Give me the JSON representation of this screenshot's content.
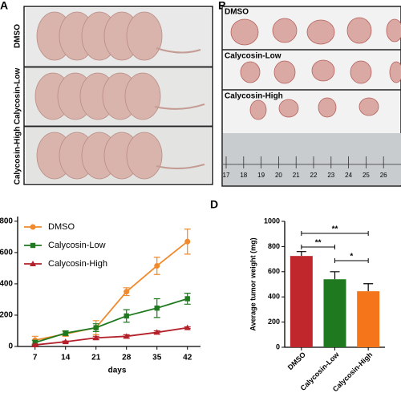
{
  "figure": {
    "panels": [
      {
        "label": "A",
        "row_labels": [
          "DMSO",
          "Calycosin-Low",
          "Calycosin-High"
        ]
      },
      {
        "label": "B",
        "row_labels": [
          "DMSO",
          "Calycosin-Low",
          "Calycosin-High"
        ],
        "ruler_labels": [
          17,
          18,
          19,
          20,
          21,
          22,
          23,
          24,
          25,
          26
        ]
      }
    ]
  },
  "chart_data": [
    {
      "type": "line",
      "x": [
        7,
        14,
        21,
        28,
        35,
        42
      ],
      "xlim": [
        3,
        45
      ],
      "xticks": [
        7,
        14,
        21,
        28,
        35,
        42
      ],
      "xlabel": "days",
      "ylim": [
        0,
        830
      ],
      "yticks": [
        0,
        200,
        400,
        600,
        800
      ],
      "legend": "upper-left",
      "series": [
        {
          "name": "DMSO",
          "color": "#f08a2c",
          "marker": "circle",
          "values": [
            40,
            80,
            120,
            350,
            515,
            670
          ],
          "errors": [
            25,
            15,
            45,
            25,
            55,
            80
          ]
        },
        {
          "name": "Calycosin-Low",
          "color": "#1f7a1f",
          "marker": "square",
          "values": [
            25,
            85,
            120,
            195,
            245,
            305
          ],
          "errors": [
            15,
            15,
            25,
            40,
            60,
            35
          ]
        },
        {
          "name": "Calycosin-High",
          "color": "#b3202a",
          "marker": "triangle",
          "values": [
            10,
            30,
            55,
            65,
            90,
            120
          ],
          "errors": [
            5,
            5,
            10,
            10,
            10,
            5
          ]
        }
      ]
    },
    {
      "type": "bar",
      "panel_label": "D",
      "ylabel": "Average tumor weight (mg)",
      "categories": [
        "DMSO",
        "Calycosin-Low",
        "Calycosin-High"
      ],
      "values": [
        725,
        540,
        445
      ],
      "errors": [
        35,
        60,
        60
      ],
      "colors": [
        "#c0272d",
        "#1f7a1f",
        "#f5761a"
      ],
      "ylim": [
        0,
        1000
      ],
      "yticks": [
        0,
        200,
        400,
        600,
        800,
        1000
      ],
      "annotations": [
        {
          "text": "**",
          "between": [
            "DMSO",
            "Calycosin-High"
          ]
        },
        {
          "text": "**",
          "between": [
            "DMSO",
            "Calycosin-Low"
          ]
        },
        {
          "text": "*",
          "between": [
            "Calycosin-Low",
            "Calycosin-High"
          ]
        }
      ]
    }
  ]
}
